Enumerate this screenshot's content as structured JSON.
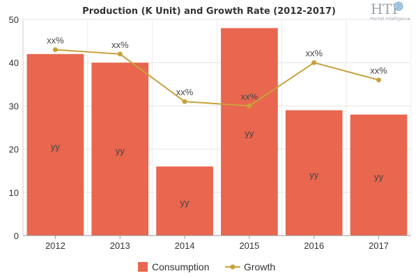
{
  "chart_data": {
    "type": "bar",
    "title": "Production (K Unit) and Growth Rate (2012-2017)",
    "categories": [
      "2012",
      "2013",
      "2014",
      "2015",
      "2016",
      "2017"
    ],
    "ylim": [
      0,
      50
    ],
    "yticks": [
      0,
      10,
      20,
      30,
      40,
      50
    ],
    "grid": true,
    "legend_position": "bottom",
    "series": [
      {
        "name": "Consumption",
        "type": "bar",
        "color": "#e8674e",
        "values": [
          42,
          40,
          16,
          48,
          29,
          28
        ],
        "labels": [
          "yy",
          "yy",
          "yy",
          "yy",
          "yy",
          "yy"
        ]
      },
      {
        "name": "Growth",
        "type": "line",
        "color": "#c9a13c",
        "values": [
          43,
          42,
          31,
          30,
          40,
          36
        ],
        "labels": [
          "xx%",
          "xx%",
          "xx%",
          "xx%",
          "xx%",
          "xx%"
        ]
      }
    ]
  },
  "logo": {
    "main": "HTF",
    "sub": "Market Intelligence"
  }
}
